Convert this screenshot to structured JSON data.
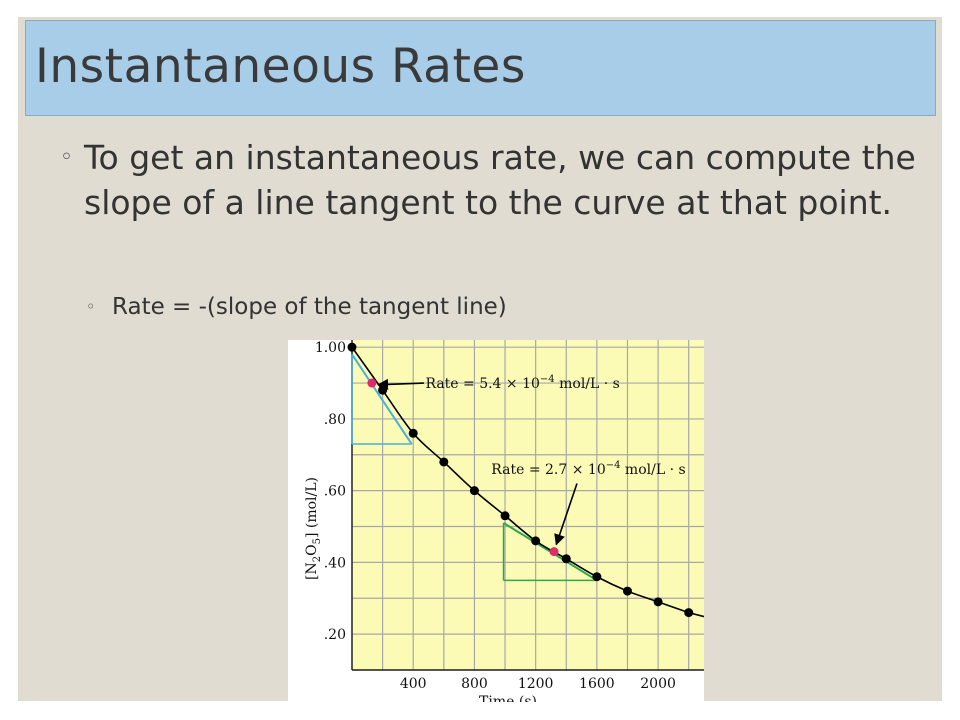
{
  "slide": {
    "title": "Instantaneous Rates",
    "bullet_mark": "◦",
    "bullet1": "To get an instantaneous rate, we can compute the slope of a line tangent to the curve at that point.",
    "bullet2": "Rate = -(slope of the tangent line)"
  },
  "chart_data": {
    "type": "scatter",
    "xlabel": "Time (s)",
    "ylabel": "[N2O5] (mol/L)",
    "ylabel_parts": [
      "[N",
      "2",
      "O",
      "5",
      "] (mol/L)"
    ],
    "xlim": [
      0,
      2300
    ],
    "ylim": [
      0.1,
      1.02
    ],
    "x_ticks": [
      400,
      800,
      1200,
      1600,
      2000
    ],
    "x_tick_labels": [
      "400",
      "800",
      "1200",
      "1600",
      "2000"
    ],
    "y_ticks": [
      1.0,
      0.8,
      0.6,
      0.4,
      0.2
    ],
    "y_tick_labels": [
      "1.00",
      ".80",
      ".60",
      ".40",
      ".20"
    ],
    "grid": true,
    "background": "#fbfbb6",
    "series": [
      {
        "values": [
          {
            "x": 0,
            "y": 1.0
          },
          {
            "x": 200,
            "y": 0.88
          },
          {
            "x": 400,
            "y": 0.76
          },
          {
            "x": 600,
            "y": 0.68
          },
          {
            "x": 800,
            "y": 0.6
          },
          {
            "x": 1000,
            "y": 0.53
          },
          {
            "x": 1200,
            "y": 0.46
          },
          {
            "x": 1400,
            "y": 0.41
          },
          {
            "x": 1600,
            "y": 0.36
          },
          {
            "x": 1800,
            "y": 0.32
          },
          {
            "x": 2000,
            "y": 0.29
          },
          {
            "x": 2200,
            "y": 0.26
          }
        ]
      }
    ],
    "highlight_points": [
      {
        "x": 130,
        "y": 0.9
      },
      {
        "x": 1320,
        "y": 0.43
      }
    ],
    "tangent_lines": [
      {
        "x1": 0,
        "y1": 0.98,
        "x2": 390,
        "y2": 0.73,
        "color": "#4ab0d8"
      },
      {
        "x1": 990,
        "y1": 0.51,
        "x2": 1600,
        "y2": 0.35,
        "color": "#2ba84a"
      }
    ],
    "slope_triangles": [
      {
        "x1": 0,
        "y_top": 0.98,
        "x2": 390,
        "y_bottom": 0.73,
        "color": "#4ab0d8"
      },
      {
        "x1": 990,
        "y_top": 0.51,
        "x2": 1600,
        "y_bottom": 0.35,
        "color": "#2ba84a"
      }
    ],
    "annotations": [
      {
        "text": "Rate = 5.4 × 10",
        "exponent": "−4",
        "unit": " mol/L · s",
        "text_x": 480,
        "text_y": 0.9,
        "arrow_from_x": 470,
        "arrow_from_y": 0.9,
        "arrow_to_x": 170,
        "arrow_to_y": 0.895
      },
      {
        "text": "Rate = 2.7 × 10",
        "exponent": "−4",
        "unit": " mol/L · s",
        "text_x": 910,
        "text_y": 0.66,
        "arrow_from_x": 1470,
        "arrow_from_y": 0.62,
        "arrow_to_x": 1335,
        "arrow_to_y": 0.45
      }
    ],
    "colors": {
      "points": "#000000",
      "highlight": "#e02a6b",
      "curve": "#000000",
      "grid": "#a8a8a8"
    }
  }
}
